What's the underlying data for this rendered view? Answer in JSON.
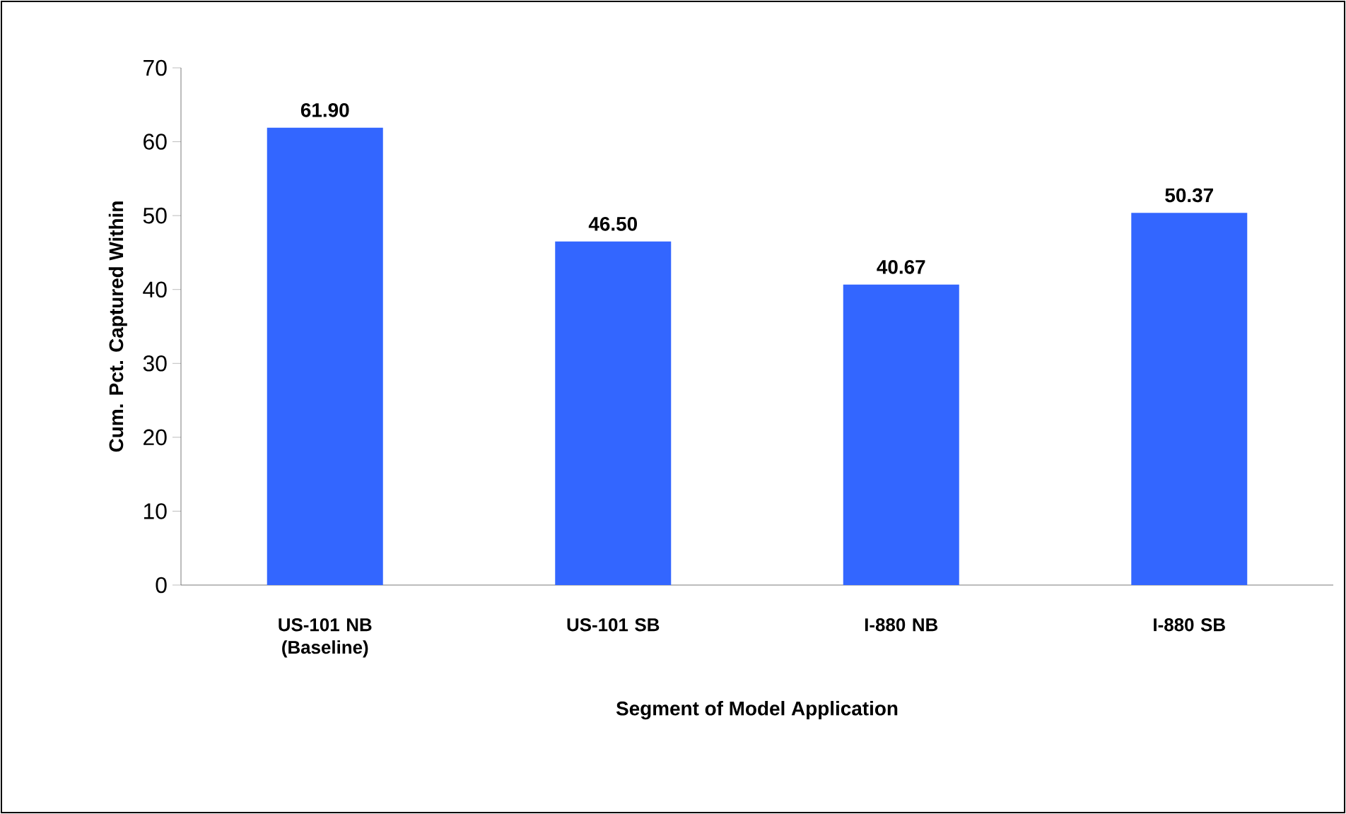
{
  "chart_data": {
    "type": "bar",
    "categories": [
      "US-101 NB (Baseline)",
      "US-101 SB",
      "I-880 NB",
      "I-880 SB"
    ],
    "values": [
      61.9,
      46.5,
      40.67,
      50.37
    ],
    "value_labels": [
      "61.90",
      "46.50",
      "40.67",
      "50.37"
    ],
    "color": "#3366ff",
    "xlabel": "Segment of Model Application",
    "ylabel": "Cum. Pct. Captured Within",
    "ylim": [
      0,
      70
    ],
    "yticks": [
      0,
      10,
      20,
      30,
      40,
      50,
      60,
      70
    ]
  }
}
